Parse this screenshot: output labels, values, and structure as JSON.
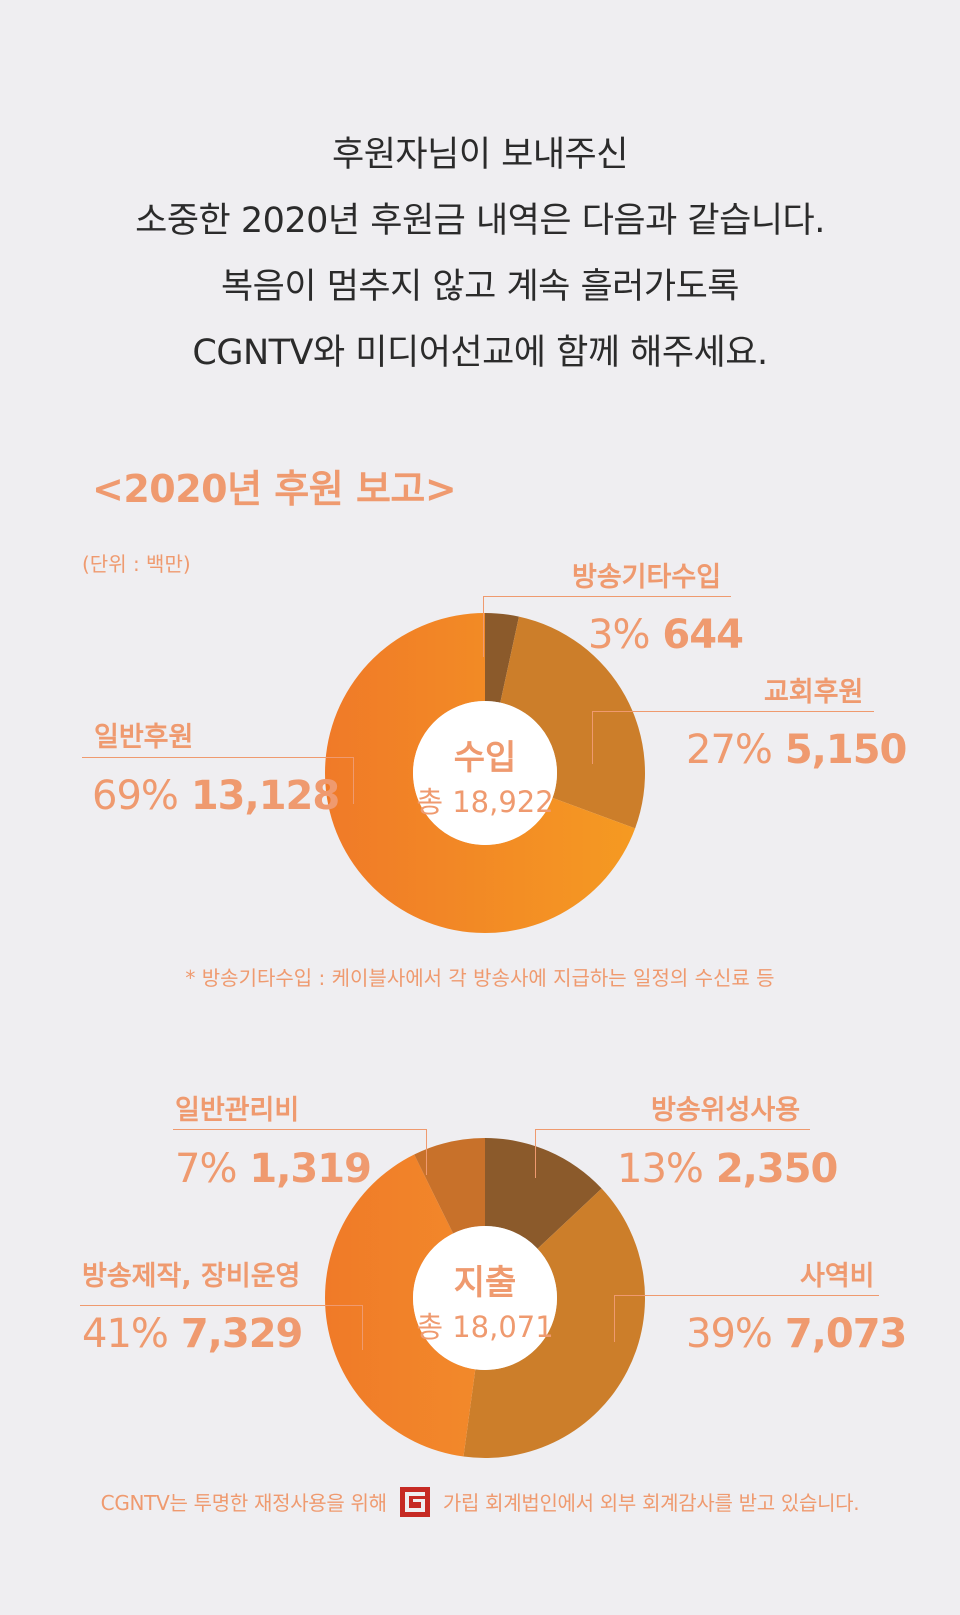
{
  "intro": {
    "line1": "후원자님이 보내주신",
    "line2": "소중한 2020년 후원금 내역은 다음과 같습니다.",
    "line3": "복음이 멈추지 않고 계속 흘러가도록",
    "line4": "CGNTV와 미디어선교에 함께 해주세요."
  },
  "report_title": "<2020년 후원 보고>",
  "unit_note": "(단위 : 백만)",
  "chart_data": [
    {
      "type": "pie",
      "center_title": "수입",
      "center_total": "총 18,922",
      "colors": {
        "방송기타수입": "#8b5a2b",
        "교회후원": "#cc7e2a",
        "일반후원": "#f38c28"
      },
      "slices": [
        {
          "label": "방송기타수입",
          "percent": "3%",
          "value": 644
        },
        {
          "label": "교회후원",
          "percent": "27%",
          "value": 5150
        },
        {
          "label": "일반후원",
          "percent": "69%",
          "value": 13128
        }
      ],
      "slice_text": {
        "방송기타수입": {
          "pct": "3%",
          "val": "644"
        },
        "교회후원": {
          "pct": "27%",
          "val": "5,150"
        },
        "일반후원": {
          "pct": "69%",
          "val": "13,128"
        }
      },
      "footnote": "* 방송기타수입 :  케이블사에서 각 방송사에 지급하는 일정의 수신료 등"
    },
    {
      "type": "pie",
      "center_title": "지출",
      "center_total": "총 18,071",
      "colors": {
        "방송위성사용": "#8b5a2b",
        "사역비": "#cc7e2a",
        "방송제작, 장비운영": "#f38c28",
        "일반관리비": "#c8712a"
      },
      "slices": [
        {
          "label": "방송위성사용",
          "percent": "13%",
          "value": 2350
        },
        {
          "label": "사역비",
          "percent": "39%",
          "value": 7073
        },
        {
          "label": "방송제작, 장비운영",
          "percent": "41%",
          "value": 7329
        },
        {
          "label": "일반관리비",
          "percent": "7%",
          "value": 1319
        }
      ],
      "slice_text": {
        "방송위성사용": {
          "pct": "13%",
          "val": "2,350"
        },
        "사역비": {
          "pct": "39%",
          "val": "7,073"
        },
        "방송제작, 장비운영": {
          "pct": "41%",
          "val": "7,329"
        },
        "일반관리비": {
          "pct": "7%",
          "val": "1,319"
        }
      }
    }
  ],
  "footer": {
    "before_logo": "CGNTV는 투명한 재정사용을 위해",
    "after_logo": "가립 회계법인에서 외부 회계감사를 받고 있습니다."
  }
}
